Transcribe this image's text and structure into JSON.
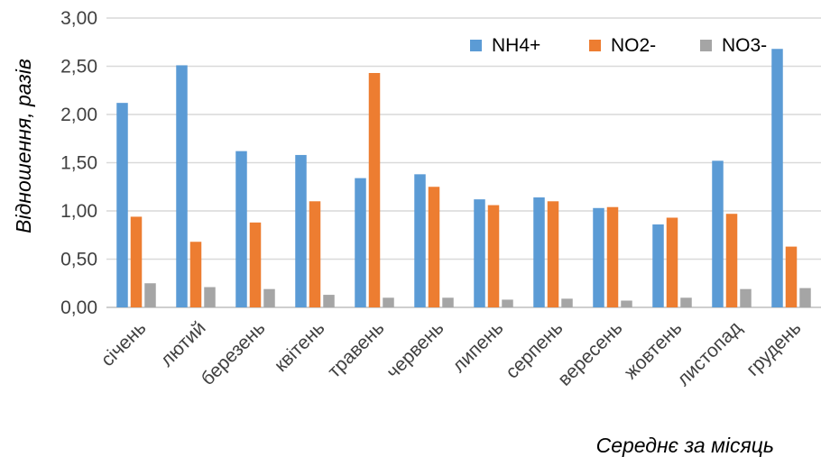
{
  "chart_data": {
    "type": "bar",
    "title": "",
    "xlabel": "Середнє за місяць",
    "ylabel": "Відношення, разів",
    "ylim": [
      0,
      3
    ],
    "yticks": [
      "0,00",
      "0,50",
      "1,00",
      "1,50",
      "2,00",
      "2,50",
      "3,00"
    ],
    "grid": true,
    "legend_position": "top-right",
    "categories": [
      "січень",
      "лютий",
      "березень",
      "квітень",
      "травень",
      "червень",
      "липень",
      "серпень",
      "вересень",
      "жовтень",
      "листопад",
      "грудень"
    ],
    "series": [
      {
        "name": "NH4+",
        "color": "#5b9bd5",
        "values": [
          2.12,
          2.51,
          1.62,
          1.58,
          1.34,
          1.38,
          1.12,
          1.14,
          1.03,
          0.86,
          1.52,
          2.68
        ]
      },
      {
        "name": "NO2-",
        "color": "#ed7d31",
        "values": [
          0.94,
          0.68,
          0.88,
          1.1,
          2.43,
          1.25,
          1.06,
          1.1,
          1.04,
          0.93,
          0.97,
          0.63
        ]
      },
      {
        "name": "NO3-",
        "color": "#a5a5a5",
        "values": [
          0.25,
          0.21,
          0.19,
          0.13,
          0.1,
          0.1,
          0.08,
          0.09,
          0.07,
          0.1,
          0.19,
          0.2
        ]
      }
    ]
  }
}
